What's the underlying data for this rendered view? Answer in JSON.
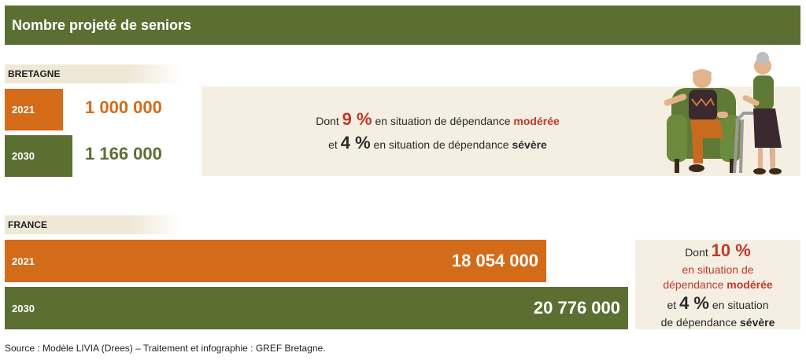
{
  "header": {
    "title": "Nombre projeté de seniors"
  },
  "bretagne": {
    "label": "BRETAGNE",
    "note": {
      "line1_prefix": "Dont",
      "line1_pct": "9 %",
      "line1_mid": "en situation de dépendance",
      "line1_kind": "modérée",
      "line2_prefix": "et",
      "line2_pct": "4 %",
      "line2_mid": "en situation de dépendance",
      "line2_kind": "sévère"
    }
  },
  "france": {
    "label": "FRANCE",
    "note": {
      "l1_prefix": "Dont",
      "l1_pct": "10 %",
      "l2": "en situation de",
      "l3_mid": "dépendance",
      "l3_kind": "modérée",
      "l4_prefix": "et",
      "l4_pct": "4 %",
      "l4_mid": "en situation",
      "l5_mid": "de dépendance",
      "l5_kind": "sévère"
    }
  },
  "colors": {
    "y2021": "#d46b18",
    "y2030": "#5b6f33",
    "accent_red": "#c0392b"
  },
  "chart_data": [
    {
      "type": "bar",
      "region": "BRETAGNE",
      "categories": [
        "2021",
        "2030"
      ],
      "values": [
        1000000,
        1166000
      ],
      "value_labels": [
        "1 000 000",
        "1 166 000"
      ],
      "title": "Nombre projeté de seniors"
    },
    {
      "type": "bar",
      "region": "FRANCE",
      "categories": [
        "2021",
        "2030"
      ],
      "values": [
        18054000,
        20776000
      ],
      "value_labels": [
        "18 054 000",
        "20 776 000"
      ],
      "title": "Nombre projeté de seniors"
    }
  ],
  "source": "Source : Modèle LIVIA (Drees) – Traitement et infographie : GREF Bretagne.",
  "illustration": {
    "icon": "elderly-couple-illustration"
  }
}
